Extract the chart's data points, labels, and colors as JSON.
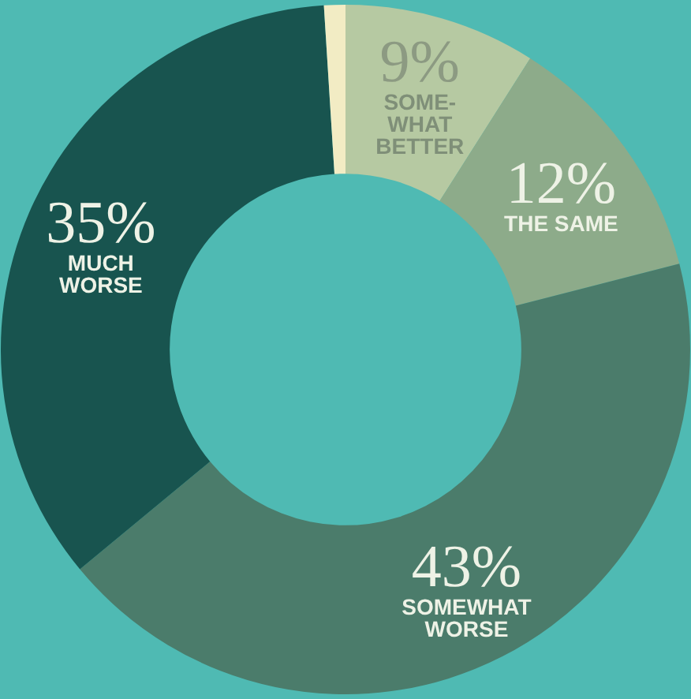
{
  "chart_data": {
    "type": "donut",
    "categories": [
      "SOME-\nWHAT\nBETTER",
      "THE SAME",
      "SOMEWHAT\nWORSE",
      "MUCH\nWORSE",
      null
    ],
    "values": [
      9,
      12,
      43,
      35,
      1
    ],
    "value_labels": [
      "9%",
      "12%",
      "43%",
      "35%",
      null
    ],
    "colors": [
      "#b6c9a2",
      "#8dab8a",
      "#4b7c6b",
      "#18544f",
      "#f2ecc4"
    ],
    "legend": false
  }
}
